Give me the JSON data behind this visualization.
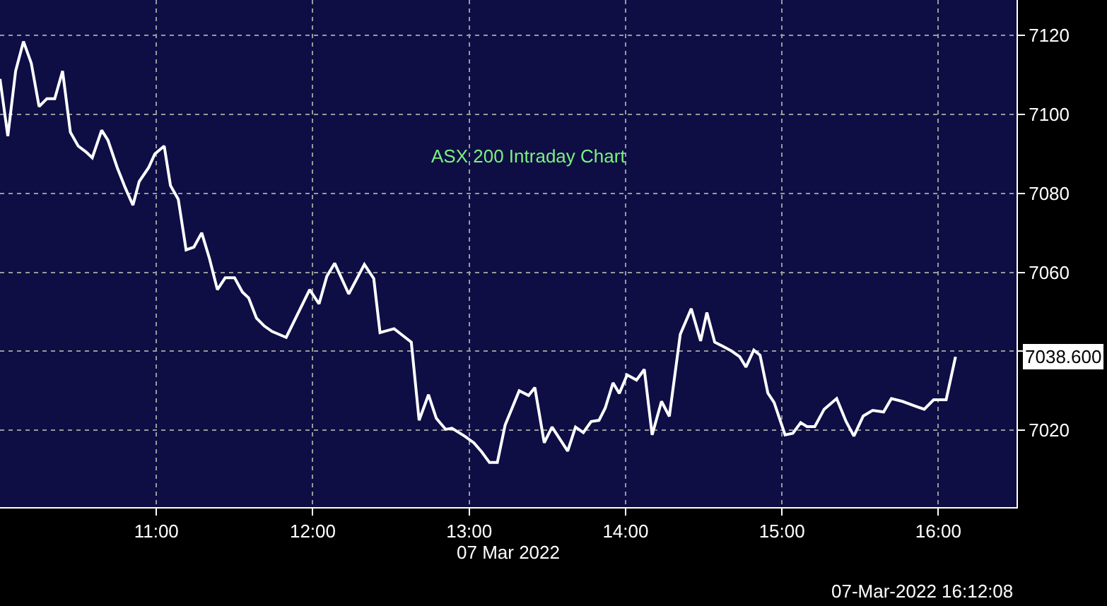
{
  "chart_data": {
    "type": "line",
    "title": "ASX 200 Intraday Chart",
    "xlabel": "07 Mar 2022",
    "x": [
      10.0,
      10.05,
      10.1,
      10.15,
      10.2,
      10.25,
      10.3,
      10.35,
      10.4,
      10.45,
      10.5,
      10.55,
      10.59,
      10.65,
      10.69,
      10.75,
      10.8,
      10.85,
      10.89,
      10.95,
      10.99,
      11.05,
      11.09,
      11.14,
      11.19,
      11.24,
      11.29,
      11.34,
      11.39,
      11.44,
      11.5,
      11.55,
      11.59,
      11.64,
      11.69,
      11.74,
      11.83,
      11.98,
      12.04,
      12.09,
      12.14,
      12.23,
      12.33,
      12.39,
      12.43,
      12.52,
      12.63,
      12.68,
      12.74,
      12.79,
      12.85,
      12.89,
      12.97,
      13.03,
      13.08,
      13.13,
      13.18,
      13.23,
      13.32,
      13.38,
      13.42,
      13.48,
      13.53,
      13.63,
      13.68,
      13.73,
      13.78,
      13.83,
      13.87,
      13.92,
      13.96,
      14.01,
      14.07,
      14.12,
      14.17,
      14.23,
      14.28,
      14.35,
      14.42,
      14.48,
      14.52,
      14.57,
      14.62,
      14.68,
      14.73,
      14.77,
      14.82,
      14.86,
      14.91,
      14.95,
      15.02,
      15.07,
      15.12,
      15.16,
      15.21,
      15.27,
      15.35,
      15.41,
      15.46,
      15.52,
      15.58,
      15.65,
      15.7,
      15.77,
      15.86,
      15.91,
      15.97,
      16.05,
      16.11
    ],
    "series": [
      {
        "color": "#ffffff",
        "values": [
          7109,
          7094.5,
          7111,
          7118.5,
          7113,
          7102,
          7104,
          7104,
          7111,
          7095.5,
          7092,
          7090.5,
          7089,
          7096,
          7093.5,
          7086.5,
          7081.5,
          7077,
          7083,
          7086.5,
          7090,
          7092,
          7082,
          7078.5,
          7065.7,
          7066.4,
          7070,
          7063.4,
          7055.6,
          7058.6,
          7058.6,
          7055,
          7053.5,
          7048.4,
          7046.4,
          7045,
          7043.5,
          7055.6,
          7052,
          7059,
          7062.3,
          7054.5,
          7062,
          7058.4,
          7044.7,
          7045.7,
          7042.3,
          7022.5,
          7029,
          7023,
          7020.2,
          7020.5,
          7018.5,
          7016.8,
          7014.5,
          7011.8,
          7011.8,
          7021.3,
          7030,
          7028.8,
          7030.8,
          7016.8,
          7020.8,
          7014.7,
          7020.8,
          7019.4,
          7022.2,
          7022.5,
          7025.6,
          7032,
          7029.3,
          7034,
          7032.7,
          7035.4,
          7018.8,
          7027.3,
          7023.5,
          7044.3,
          7050.8,
          7042.6,
          7049.8,
          7042.3,
          7041.3,
          7040,
          7038.6,
          7036,
          7040.3,
          7039,
          7029.4,
          7027,
          7018.8,
          7019.2,
          7021.9,
          7020.9,
          7020.9,
          7025.3,
          7028,
          7022.2,
          7018.5,
          7023.6,
          7025,
          7024.6,
          7028,
          7027.3,
          7026,
          7025.3,
          7027.7,
          7027.7,
          7038.6
        ]
      }
    ],
    "xlim": [
      10.0,
      16.5
    ],
    "ylim": [
      7000.5,
      7129
    ],
    "xticks": [
      {
        "value": 11,
        "label": "11:00"
      },
      {
        "value": 12,
        "label": "12:00"
      },
      {
        "value": 13,
        "label": "13:00"
      },
      {
        "value": 14,
        "label": "14:00"
      },
      {
        "value": 15,
        "label": "15:00"
      },
      {
        "value": 16,
        "label": "16:00"
      }
    ],
    "yticks": [
      7020,
      {
        "value": 7040,
        "label": null
      },
      7060,
      7080,
      7100,
      7120
    ],
    "annotations": [
      "7038.600",
      "07-Mar-2022 16:12:08"
    ],
    "grid": true,
    "line_style": "solid",
    "marker": "none"
  }
}
